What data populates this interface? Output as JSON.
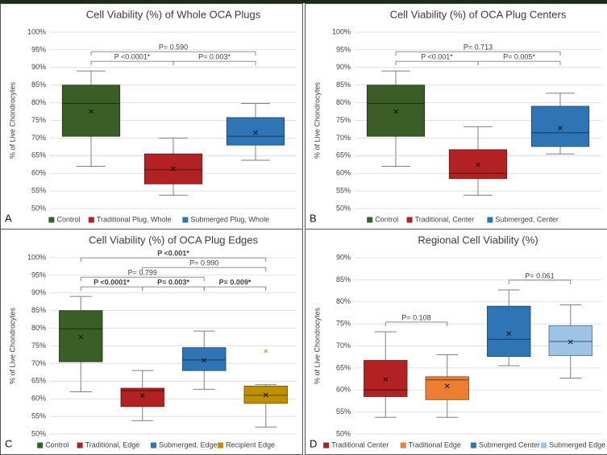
{
  "chart_data": [
    {
      "type": "box",
      "panel_label": "A",
      "title": "Cell Viability (%) of Whole OCA Plugs",
      "y_label": "% of Live Chondrocytes",
      "ylim": [
        50,
        100
      ],
      "yticks": [
        {
          "value": 50,
          "label": "50%"
        },
        {
          "value": 55,
          "label": "55%"
        },
        {
          "value": 60,
          "label": "60%"
        },
        {
          "value": 65,
          "label": "65%"
        },
        {
          "value": 70,
          "label": "70%"
        },
        {
          "value": 75,
          "label": "75%"
        },
        {
          "value": 80,
          "label": "80%"
        },
        {
          "value": 85,
          "label": "85%"
        },
        {
          "value": 90,
          "label": "90%"
        },
        {
          "value": 95,
          "label": "95%"
        },
        {
          "value": 100,
          "label": "100%"
        }
      ],
      "grid": true,
      "series": [
        {
          "name": "Control",
          "color": "#3b5e26",
          "min": 62,
          "q1": 70.5,
          "median": 79.8,
          "q3": 85,
          "max": 89,
          "mean": 77.5
        },
        {
          "name": "Traditional Plug, Whole",
          "color": "#b22222",
          "min": 53.8,
          "q1": 57,
          "median": 61,
          "q3": 65.5,
          "max": 70,
          "mean": 61.3
        },
        {
          "name": "Submerged Plug, Whole",
          "color": "#2e75b6",
          "min": 63.7,
          "q1": 68,
          "median": 70.5,
          "q3": 75.8,
          "max": 79.8,
          "mean": 71.5
        }
      ],
      "annotations": [
        {
          "text": "P <0.0001*",
          "from": 0,
          "to": 1
        },
        {
          "text": "P= 0.003*",
          "from": 1,
          "to": 2
        },
        {
          "text": "P= 0.590",
          "from": 0,
          "to": 2
        }
      ]
    },
    {
      "type": "box",
      "panel_label": "B",
      "title": "Cell Viability (%) of OCA Plug Centers",
      "y_label": "% of Live Chondrocytes",
      "ylim": [
        50,
        100
      ],
      "yticks": [
        {
          "value": 50,
          "label": "50%"
        },
        {
          "value": 55,
          "label": "55%"
        },
        {
          "value": 60,
          "label": "60%"
        },
        {
          "value": 65,
          "label": "65%"
        },
        {
          "value": 70,
          "label": "70%"
        },
        {
          "value": 75,
          "label": "75%"
        },
        {
          "value": 80,
          "label": "80%"
        },
        {
          "value": 85,
          "label": "85%"
        },
        {
          "value": 90,
          "label": "90%"
        },
        {
          "value": 95,
          "label": "95%"
        },
        {
          "value": 100,
          "label": "100%"
        }
      ],
      "grid": true,
      "series": [
        {
          "name": "Control",
          "color": "#3b5e26",
          "min": 62,
          "q1": 70.5,
          "median": 79.8,
          "q3": 85,
          "max": 89,
          "mean": 77.5
        },
        {
          "name": "Traditional, Center",
          "color": "#b22222",
          "min": 53.8,
          "q1": 58.5,
          "median": 60,
          "q3": 66.7,
          "max": 73.2,
          "mean": 62.4
        },
        {
          "name": "Submerged, Center",
          "color": "#2e75b6",
          "min": 65.5,
          "q1": 67.6,
          "median": 71.5,
          "q3": 79,
          "max": 82.7,
          "mean": 72.8
        }
      ],
      "annotations": [
        {
          "text": "P <0.001*",
          "from": 0,
          "to": 1
        },
        {
          "text": "P= 0.005*",
          "from": 1,
          "to": 2
        },
        {
          "text": "P= 0.713",
          "from": 0,
          "to": 2
        }
      ]
    },
    {
      "type": "box",
      "panel_label": "C",
      "title": "Cell Viability (%) of OCA Plug Edges",
      "y_label": "% of Live Chondrocytes",
      "ylim": [
        50,
        100
      ],
      "yticks": [
        {
          "value": 50,
          "label": "50%"
        },
        {
          "value": 55,
          "label": "55%"
        },
        {
          "value": 60,
          "label": "60%"
        },
        {
          "value": 65,
          "label": "65%"
        },
        {
          "value": 70,
          "label": "70%"
        },
        {
          "value": 75,
          "label": "75%"
        },
        {
          "value": 80,
          "label": "80%"
        },
        {
          "value": 85,
          "label": "85%"
        },
        {
          "value": 90,
          "label": "90%"
        },
        {
          "value": 95,
          "label": "95%"
        },
        {
          "value": 100,
          "label": "100%"
        }
      ],
      "grid": true,
      "series": [
        {
          "name": "Control",
          "color": "#3b5e26",
          "min": 62,
          "q1": 70.5,
          "median": 79.8,
          "q3": 85,
          "max": 89,
          "mean": 77.5
        },
        {
          "name": "Traditional, Edge",
          "color": "#b22222",
          "min": 53.8,
          "q1": 57.8,
          "median": 62.3,
          "q3": 63,
          "max": 68,
          "mean": 60.9
        },
        {
          "name": "Submerged, Edge",
          "color": "#2e75b6",
          "min": 62.7,
          "q1": 68,
          "median": 71,
          "q3": 74.5,
          "max": 79.2,
          "mean": 70.9
        },
        {
          "name": "Recipient Edge",
          "color": "#bf9000",
          "min": 52,
          "q1": 58.7,
          "median": 61,
          "q3": 63.6,
          "max": 64,
          "mean": 61.1,
          "outliers": [
            73.5
          ]
        }
      ],
      "annotations": [
        {
          "text": "P <0.0001*",
          "from": 0,
          "to": 1,
          "bold": true
        },
        {
          "text": "P= 0.003*",
          "from": 1,
          "to": 2,
          "bold": true
        },
        {
          "text": "P= 0.009*",
          "from": 2,
          "to": 3,
          "bold": true
        },
        {
          "text": "P= 0.799",
          "from": 0,
          "to": 2
        },
        {
          "text": "P= 0.990",
          "from": 1,
          "to": 3
        },
        {
          "text": "P <0.001*",
          "from": 0,
          "to": 3,
          "bold": true
        }
      ]
    },
    {
      "type": "box",
      "panel_label": "D",
      "title": "Regional Cell Viability (%)",
      "y_label": "% of Live Chondrocytes",
      "ylim": [
        50,
        90
      ],
      "yticks": [
        {
          "value": 50,
          "label": "50%"
        },
        {
          "value": 55,
          "label": "55%"
        },
        {
          "value": 60,
          "label": "60%"
        },
        {
          "value": 65,
          "label": "65%"
        },
        {
          "value": 70,
          "label": "70%"
        },
        {
          "value": 75,
          "label": "75%"
        },
        {
          "value": 80,
          "label": "80%"
        },
        {
          "value": 85,
          "label": "85%"
        },
        {
          "value": 90,
          "label": "90%"
        }
      ],
      "grid": true,
      "series": [
        {
          "name": "Traditional Center",
          "color": "#b22222",
          "min": 53.8,
          "q1": 58.5,
          "median": 60,
          "q3": 66.7,
          "max": 73.2,
          "mean": 62.4
        },
        {
          "name": "Traditional Edge",
          "color": "#ed7d31",
          "min": 53.8,
          "q1": 57.8,
          "median": 62.3,
          "q3": 63,
          "max": 68,
          "mean": 60.9
        },
        {
          "name": "Submerged Center",
          "color": "#2e75b6",
          "min": 65.5,
          "q1": 67.6,
          "median": 71.5,
          "q3": 79,
          "max": 82.7,
          "mean": 72.8
        },
        {
          "name": "Submerged Edge",
          "color": "#9dc3e6",
          "min": 62.7,
          "q1": 67.8,
          "median": 71,
          "q3": 74.6,
          "max": 79.3,
          "mean": 70.9
        }
      ],
      "annotations": [
        {
          "text": "P= 0.108",
          "from": 0,
          "to": 1
        },
        {
          "text": "P= 0.061",
          "from": 2,
          "to": 3
        }
      ]
    }
  ]
}
